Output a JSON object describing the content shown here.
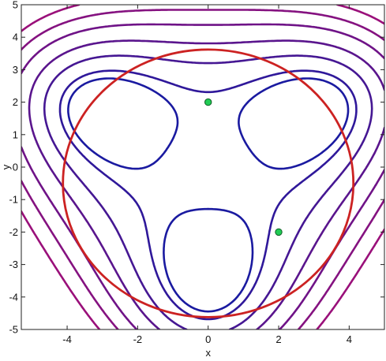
{
  "chart_data": {
    "type": "contour",
    "title": "",
    "xlabel": "x",
    "ylabel": "y",
    "xlim": [
      -5.3,
      5
    ],
    "ylim": [
      -5,
      5
    ],
    "xticks": [
      -4,
      -2,
      0,
      2,
      4
    ],
    "yticks": [
      5,
      4,
      3,
      2,
      1,
      0,
      -1,
      -2,
      -3,
      -4,
      -5
    ],
    "grid": false,
    "legend": "none",
    "colors": {
      "low": "#1a1aa0",
      "high": "#d41f14",
      "point": "#22cc55"
    },
    "constraint_circle": {
      "center": [
        0,
        -0.5
      ],
      "radius": 4.12,
      "color": "#cc2222"
    },
    "contour_levels": [
      0.5,
      2.5,
      8,
      16,
      28,
      42,
      60
    ],
    "points": [
      {
        "x": 0,
        "y": 2
      },
      {
        "x": 2,
        "y": -2
      }
    ]
  }
}
